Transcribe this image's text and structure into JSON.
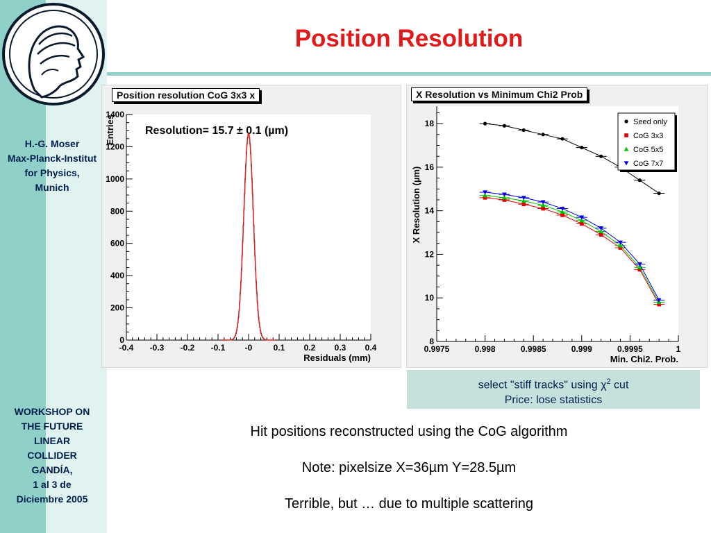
{
  "slide": {
    "title": "Position Resolution",
    "author_block": "H.-G. Moser\nMax-Planck-Institut\nfor Physics,\nMunich",
    "workshop_block": "WORKSHOP ON\nTHE FUTURE\nLINEAR\nCOLLIDER\nGANDÍA,\n1 al 3 de\nDiciembre 2005",
    "caption_line1_prefix": "select \"stiff tracks\" using ",
    "caption_chi": "χ",
    "caption_sup": "2",
    "caption_line1_suffix": " cut",
    "caption_line2": "Price: lose statistics",
    "text1": "Hit positions reconstructed using the CoG algorithm",
    "text2": "Note: pixelsize X=36µm Y=28.5µm",
    "text3": "Terrible, but … due to multiple scattering",
    "colors": {
      "title": "#e01a1a",
      "sidebar_dark": "#8fd1c9",
      "sidebar_light": "#e1f3f1",
      "caption_bg": "#c6e0dc",
      "text_navy": "#001e4c"
    },
    "logo_icon": "minerva-head-icon"
  },
  "chart_data": [
    {
      "type": "histogram",
      "title": "Position resolution CoG 3x3 x",
      "annotation": "Resolution= 15.7 ± 0.1 (µm)",
      "xlabel": "Residuals (mm)",
      "ylabel": "Entries",
      "xlim": [
        -0.4,
        0.4
      ],
      "ylim": [
        0,
        1400
      ],
      "xticks": [
        "-0.4",
        "-0.3",
        "-0.2",
        "-0.1",
        "-0",
        "0.1",
        "0.2",
        "0.3",
        "0.4"
      ],
      "yticks": [
        "0",
        "200",
        "400",
        "600",
        "800",
        "1000",
        "1200",
        "1400"
      ],
      "fit": {
        "function": "gaussian",
        "mean": 0.0,
        "sigma": 0.0157,
        "peak": 1280,
        "color": "#e02020"
      },
      "grid": false
    },
    {
      "type": "line",
      "title": "X Resolution vs Minimum Chi2 Prob",
      "xlabel": "Min. Chi2. Prob.",
      "ylabel": "X Resolution (µm)",
      "xlim": [
        0.9975,
        1.0
      ],
      "ylim": [
        8,
        18.8
      ],
      "xticks": [
        "0.9975",
        "0.998",
        "0.9985",
        "0.999",
        "0.9995",
        "1"
      ],
      "yticks": [
        "8",
        "10",
        "12",
        "14",
        "16",
        "18"
      ],
      "legend_position": "top-right",
      "x": [
        0.998,
        0.9982,
        0.9984,
        0.9986,
        0.9988,
        0.999,
        0.9992,
        0.9994,
        0.9996,
        0.9998
      ],
      "series": [
        {
          "name": "Seed only",
          "marker": "circle",
          "color": "#000000",
          "values": [
            18.0,
            17.9,
            17.7,
            17.5,
            17.3,
            16.9,
            16.5,
            16.0,
            15.4,
            14.8
          ]
        },
        {
          "name": "CoG 3x3",
          "marker": "square",
          "color": "#e00000",
          "values": [
            14.6,
            14.5,
            14.3,
            14.1,
            13.8,
            13.4,
            12.9,
            12.3,
            11.3,
            9.7
          ]
        },
        {
          "name": "CoG 5x5",
          "marker": "triangle-up",
          "color": "#00c000",
          "values": [
            14.7,
            14.6,
            14.45,
            14.25,
            13.95,
            13.55,
            13.05,
            12.4,
            11.4,
            9.8
          ]
        },
        {
          "name": "CoG 7x7",
          "marker": "triangle-down",
          "color": "#0000e0",
          "values": [
            14.85,
            14.75,
            14.6,
            14.4,
            14.1,
            13.7,
            13.2,
            12.55,
            11.55,
            9.9
          ]
        }
      ],
      "grid": false
    }
  ]
}
